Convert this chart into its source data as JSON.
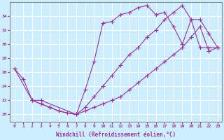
{
  "xlabel": "Windchill (Refroidissement éolien,°C)",
  "ylabel": "",
  "bg_color": "#cceeff",
  "line_color": "#993399",
  "grid_color": "#ffffff",
  "xlim": [
    -0.5,
    23.5
  ],
  "ylim": [
    19.0,
    36.0
  ],
  "yticks": [
    20,
    22,
    24,
    26,
    28,
    30,
    32,
    34
  ],
  "xticks": [
    0,
    1,
    2,
    3,
    4,
    5,
    6,
    7,
    8,
    9,
    10,
    11,
    12,
    13,
    14,
    15,
    16,
    17,
    18,
    19,
    20,
    21,
    22,
    23
  ],
  "line1_x": [
    0,
    1,
    2,
    3,
    4,
    5,
    6,
    7,
    8,
    9,
    10,
    11,
    12,
    13,
    14,
    15,
    16,
    17,
    18,
    19,
    20,
    21,
    22,
    23
  ],
  "line1_y": [
    26.5,
    25.0,
    22.0,
    21.5,
    21.0,
    20.5,
    20.2,
    20.0,
    23.5,
    27.5,
    33.0,
    33.2,
    34.2,
    34.5,
    35.2,
    35.5,
    34.2,
    34.5,
    32.5,
    30.0,
    33.5,
    33.5,
    31.5,
    29.5
  ],
  "line2_x": [
    0,
    2,
    3,
    7,
    8,
    9,
    10,
    11,
    12,
    13,
    14,
    15,
    16,
    17,
    18,
    19,
    20,
    21,
    22,
    23
  ],
  "line2_y": [
    26.5,
    22.0,
    22.0,
    20.0,
    21.0,
    22.5,
    24.0,
    25.5,
    27.0,
    28.5,
    29.5,
    31.0,
    32.0,
    33.5,
    34.5,
    35.5,
    33.5,
    29.5,
    29.5,
    29.5
  ],
  "line3_x": [
    2,
    3,
    4,
    5,
    6,
    7,
    8,
    9,
    10,
    11,
    12,
    13,
    14,
    15,
    16,
    17,
    18,
    19,
    20,
    21,
    22,
    23
  ],
  "line3_y": [
    22.0,
    21.5,
    21.0,
    20.5,
    20.2,
    20.0,
    20.5,
    21.0,
    21.5,
    22.0,
    22.5,
    23.5,
    24.5,
    25.5,
    26.5,
    27.5,
    28.5,
    29.5,
    31.0,
    32.5,
    29.0,
    29.5
  ]
}
